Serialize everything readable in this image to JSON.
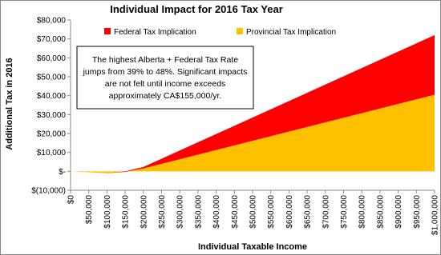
{
  "chart_data": {
    "type": "stacked_area",
    "title": "Individual Impact for 2016 Tax Year",
    "y_label": "Additional Tax in 2016",
    "x_label": "Individual Taxable Income",
    "annotation": [
      "The highest Alberta + Federal Tax Rate",
      "jumps from 39% to 48%. Significant impacts",
      "are not felt until income exceeds",
      "approximately CA$155,000/yr."
    ],
    "x": [
      0,
      50000,
      100000,
      150000,
      200000,
      1000000
    ],
    "series": [
      {
        "name": "Provincial Tax Implication",
        "color": "#ffc000",
        "values": [
          0,
          -500,
          -1000,
          -300,
          1500,
          40500
        ]
      },
      {
        "name": "Federal Tax Implication",
        "color": "#ff0000",
        "values": [
          0,
          0,
          0,
          300,
          800,
          31500
        ]
      }
    ],
    "xlim": [
      0,
      1000000
    ],
    "xticks": [
      {
        "value": 0,
        "label": "$0"
      },
      {
        "value": 50000,
        "label": "$50,000"
      },
      {
        "value": 100000,
        "label": "$100,000"
      },
      {
        "value": 150000,
        "label": "$150,000"
      },
      {
        "value": 200000,
        "label": "$200,000"
      },
      {
        "value": 250000,
        "label": "$250,000"
      },
      {
        "value": 300000,
        "label": "$300,000"
      },
      {
        "value": 350000,
        "label": "$350,000"
      },
      {
        "value": 400000,
        "label": "$400,000"
      },
      {
        "value": 450000,
        "label": "$450,000"
      },
      {
        "value": 500000,
        "label": "$500,000"
      },
      {
        "value": 550000,
        "label": "$550,000"
      },
      {
        "value": 600000,
        "label": "$600,000"
      },
      {
        "value": 650000,
        "label": "$650,000"
      },
      {
        "value": 700000,
        "label": "$700,000"
      },
      {
        "value": 750000,
        "label": "$750,000"
      },
      {
        "value": 800000,
        "label": "$800,000"
      },
      {
        "value": 850000,
        "label": "$850,000"
      },
      {
        "value": 900000,
        "label": "$900,000"
      },
      {
        "value": 950000,
        "label": "$950,000"
      },
      {
        "value": 1000000,
        "label": "$1,000,000"
      }
    ],
    "ylim": [
      -10000,
      80000
    ],
    "yticks": [
      {
        "value": -10000,
        "label": "$(10,000)"
      },
      {
        "value": 0,
        "label": "$-"
      },
      {
        "value": 10000,
        "label": "$10,000"
      },
      {
        "value": 20000,
        "label": "$20,000"
      },
      {
        "value": 30000,
        "label": "$30,000"
      },
      {
        "value": 40000,
        "label": "$40,000"
      },
      {
        "value": 50000,
        "label": "$50,000"
      },
      {
        "value": 60000,
        "label": "$60,000"
      },
      {
        "value": 70000,
        "label": "$70,000"
      },
      {
        "value": 80000,
        "label": "$80,000"
      }
    ],
    "legend_position": "top"
  }
}
